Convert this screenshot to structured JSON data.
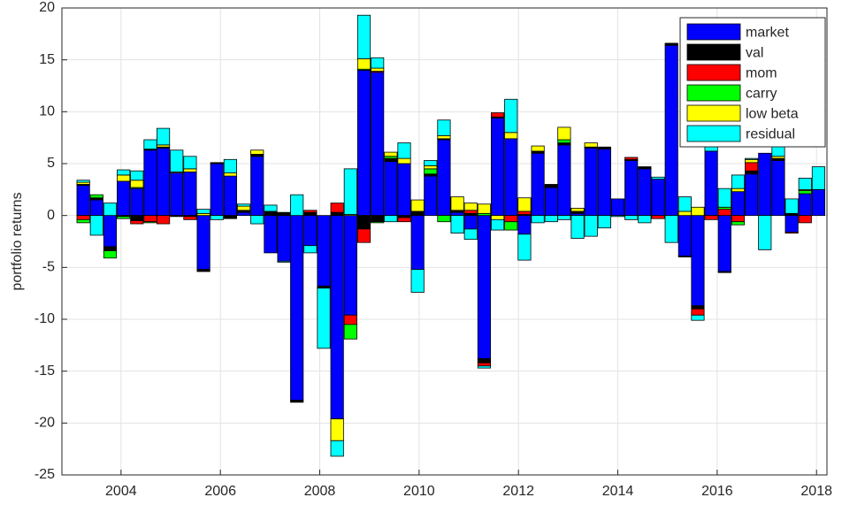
{
  "chart_data": {
    "type": "stacked_bar",
    "y_label": "portfolio returns",
    "x": [
      2003.24,
      2003.51,
      2003.78,
      2004.05,
      2004.32,
      2004.59,
      2004.85,
      2005.12,
      2005.39,
      2005.66,
      2005.93,
      2006.2,
      2006.47,
      2006.74,
      2007.01,
      2007.28,
      2007.54,
      2007.81,
      2008.08,
      2008.35,
      2008.62,
      2008.89,
      2009.16,
      2009.43,
      2009.7,
      2009.97,
      2010.23,
      2010.5,
      2010.77,
      2011.04,
      2011.31,
      2011.58,
      2011.85,
      2012.12,
      2012.39,
      2012.66,
      2012.92,
      2013.19,
      2013.46,
      2013.73,
      2014.0,
      2014.27,
      2014.54,
      2014.81,
      2015.08,
      2015.35,
      2015.61,
      2015.88,
      2016.15,
      2016.42,
      2016.69,
      2016.96,
      2017.23,
      2017.5,
      2017.77,
      2018.04
    ],
    "series": [
      {
        "name": "market",
        "color": "#0000ff",
        "values": [
          2.9,
          1.5,
          -3.0,
          3.3,
          2.6,
          6.3,
          6.5,
          4.1,
          4.2,
          -5.2,
          5.0,
          3.8,
          0.3,
          5.7,
          -3.6,
          -4.4,
          -17.8,
          -2.9,
          -6.8,
          -19.6,
          -9.6,
          14.0,
          13.8,
          5.2,
          5.0,
          -5.2,
          3.8,
          7.3,
          0.3,
          -1.3,
          -13.8,
          9.4,
          7.4,
          -1.8,
          6.0,
          2.7,
          6.8,
          0.2,
          6.5,
          6.4,
          1.6,
          5.3,
          4.5,
          3.5,
          16.4,
          -3.9,
          -8.7,
          6.2,
          -5.4,
          2.3,
          4.0,
          6.0,
          5.3,
          -1.6,
          2.1,
          2.5
        ]
      },
      {
        "name": "val",
        "color": "#000000",
        "values": [
          0.1,
          0.2,
          -0.4,
          -0.1,
          -0.5,
          0.1,
          0.1,
          -0.1,
          -0.1,
          -0.2,
          0.1,
          -0.3,
          0.2,
          0.2,
          0.4,
          0.3,
          -0.2,
          0.3,
          -0.2,
          0.3,
          0,
          -1.3,
          -0.6,
          0.3,
          -0.2,
          0.4,
          0.2,
          0.1,
          0.2,
          0.2,
          -0.4,
          0.1,
          0,
          0.1,
          0.2,
          0.3,
          0.2,
          0.2,
          0.1,
          0.2,
          0,
          0.1,
          0.2,
          0,
          0.2,
          -0.1,
          -0.3,
          0,
          -0.1,
          0,
          0.3,
          0,
          0.2,
          0.2,
          0,
          0
        ]
      },
      {
        "name": "mom",
        "color": "#ff0000",
        "values": [
          -0.4,
          0,
          0,
          0,
          -0.3,
          -0.6,
          -0.8,
          0,
          -0.3,
          0,
          0,
          0,
          0,
          0,
          0,
          0,
          0,
          0.2,
          0,
          0.9,
          -0.9,
          -1.3,
          0.1,
          0,
          -0.4,
          0,
          0,
          0,
          0,
          0.3,
          -0.3,
          0.4,
          -0.6,
          0.3,
          0,
          0,
          0,
          0,
          0,
          0,
          0,
          0.2,
          0,
          -0.3,
          0,
          0,
          -0.6,
          -0.4,
          0.6,
          -0.6,
          0.8,
          0,
          0,
          -0.1,
          -0.7,
          0
        ]
      },
      {
        "name": "carry",
        "color": "#00ff00",
        "values": [
          -0.3,
          0.3,
          -0.7,
          -0.2,
          0.1,
          -0.1,
          0,
          0,
          0,
          0,
          0,
          0,
          0,
          0,
          0,
          0,
          0,
          0,
          0,
          0,
          -1.4,
          0.1,
          -0.1,
          0.2,
          0,
          0,
          0.5,
          -0.6,
          0,
          0,
          0.2,
          0,
          -0.8,
          0,
          0,
          0,
          0.3,
          0,
          0,
          0,
          0,
          0,
          0,
          0,
          0,
          0,
          0,
          0,
          0.2,
          -0.3,
          0,
          0,
          0,
          0,
          0.3,
          0
        ]
      },
      {
        "name": "low beta",
        "color": "#ffff00",
        "values": [
          0.2,
          0,
          0,
          0.6,
          0.7,
          0,
          0.2,
          0.1,
          0.3,
          0.2,
          0,
          0.3,
          0.4,
          0.4,
          0,
          0,
          0,
          0,
          0,
          -2.1,
          0.1,
          1.0,
          0.3,
          0.4,
          0.5,
          1.1,
          0.3,
          0.3,
          1.3,
          0.7,
          0.9,
          -0.4,
          0.6,
          1.3,
          0.5,
          0,
          1.2,
          0.3,
          0.4,
          0,
          0,
          0,
          0,
          0,
          0,
          0.4,
          0.8,
          0,
          0,
          0.3,
          0.3,
          0,
          0.2,
          0,
          0.1,
          0
        ]
      },
      {
        "name": "residual",
        "color": "#00ffff",
        "values": [
          0.2,
          -1.9,
          1.2,
          0.5,
          0.9,
          0.9,
          1.6,
          2.1,
          1.2,
          0.4,
          -0.4,
          1.3,
          0.2,
          -0.8,
          0.6,
          -0.1,
          2.0,
          -0.7,
          -5.8,
          -1.5,
          4.4,
          4.2,
          1.0,
          -0.6,
          1.5,
          -2.2,
          0.5,
          1.5,
          -1.7,
          -1.0,
          -0.2,
          -1.0,
          3.2,
          -2.5,
          -0.7,
          -0.6,
          -0.4,
          -2.2,
          -2.0,
          -1.2,
          -0.1,
          -0.4,
          -0.7,
          0.2,
          -2.6,
          1.4,
          -0.5,
          1.0,
          1.8,
          1.3,
          0.1,
          -3.3,
          1.1,
          1.4,
          1.1,
          2.2
        ]
      }
    ],
    "xlim": [
      2002.81,
      2018.21
    ],
    "xticks": [
      2004,
      2006,
      2008,
      2010,
      2012,
      2014,
      2016,
      2018
    ],
    "ylim": [
      -25,
      20
    ],
    "yticks": [
      -25,
      -20,
      -15,
      -10,
      -5,
      0,
      5,
      10,
      15,
      20
    ],
    "grid": true,
    "legend": "northeast"
  }
}
